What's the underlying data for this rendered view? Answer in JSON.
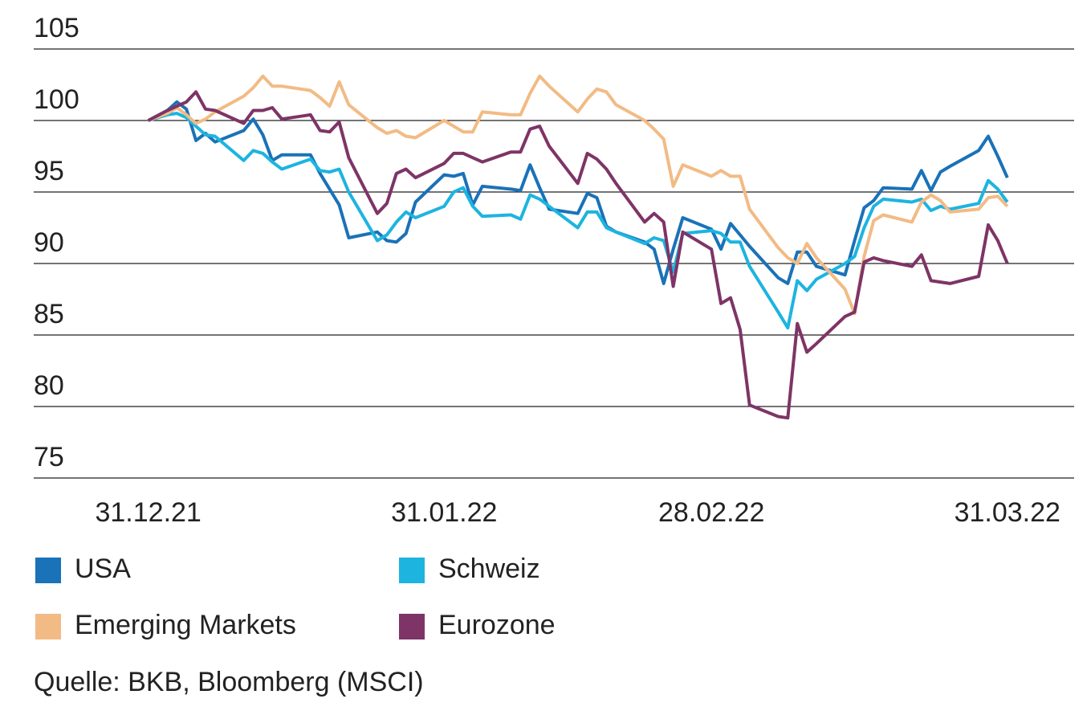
{
  "chart_data": {
    "type": "line",
    "source": "Quelle: BKB, Bloomberg (MSCI)",
    "x": [
      0,
      2,
      3,
      4,
      5,
      6,
      7,
      10,
      11,
      12,
      13,
      14,
      17,
      18,
      19,
      20,
      21,
      24,
      25,
      26,
      27,
      28,
      31,
      32,
      33,
      34,
      35,
      38,
      39,
      40,
      41,
      42,
      45,
      46,
      47,
      48,
      49,
      52,
      53,
      54,
      55,
      56,
      59,
      60,
      61,
      62,
      63,
      66,
      67,
      68,
      69,
      70,
      73,
      74,
      75,
      76,
      77,
      80,
      81,
      82,
      83,
      84,
      87,
      88,
      89,
      90
    ],
    "xlim": [
      -12,
      97
    ],
    "xticks": [
      {
        "value": 0,
        "label": "31.12.21"
      },
      {
        "value": 31,
        "label": "31.01.22"
      },
      {
        "value": 59,
        "label": "28.02.22"
      },
      {
        "value": 90,
        "label": "31.03.22"
      }
    ],
    "ylim": [
      75,
      105
    ],
    "yticks": [
      75,
      80,
      85,
      90,
      95,
      100,
      105
    ],
    "grid": true,
    "series": [
      {
        "name": "USA",
        "color": "#1a72b8",
        "values": [
          100,
          100.7,
          101.3,
          100.8,
          98.6,
          99.1,
          98.5,
          99.3,
          100.1,
          99,
          97.2,
          97.6,
          97.6,
          96.3,
          95.2,
          94.1,
          91.8,
          92.2,
          91.6,
          91.5,
          92.1,
          94.3,
          96.2,
          96.1,
          96.3,
          94.1,
          95.4,
          95.2,
          95.1,
          96.9,
          95.3,
          93.8,
          93.5,
          94.9,
          94.6,
          92.6,
          92.2,
          91.5,
          91,
          88.6,
          91,
          93.2,
          92.4,
          91,
          92.8,
          92,
          91.2,
          89,
          88.6,
          90.8,
          90.8,
          89.8,
          89.2,
          91.6,
          93.9,
          94.4,
          95.3,
          95.2,
          96.5,
          95.1,
          96.4,
          96.8,
          97.9,
          98.9,
          97.5,
          96
        ]
      },
      {
        "name": "Schweiz",
        "color": "#1db4e0",
        "values": [
          100,
          100.4,
          100.5,
          100.2,
          99.6,
          99,
          98.9,
          97.2,
          97.9,
          97.7,
          97.1,
          96.6,
          97.3,
          96.5,
          96.4,
          96.6,
          95,
          91.6,
          92,
          92.9,
          93.6,
          93.2,
          94,
          95,
          95.3,
          94,
          93.3,
          93.4,
          93.1,
          94.8,
          94.5,
          94,
          92.5,
          93.6,
          93.6,
          92.5,
          92.2,
          91.4,
          91.8,
          91.6,
          89.4,
          92.1,
          92.3,
          92.1,
          91.5,
          91.5,
          89.8,
          86.6,
          85.5,
          88.8,
          88.1,
          88.9,
          90,
          90.5,
          92.5,
          94,
          94.5,
          94.3,
          94.5,
          93.7,
          94,
          93.8,
          94.2,
          95.8,
          95.2,
          94.3
        ]
      },
      {
        "name": "Emerging Markets",
        "color": "#f2bb85",
        "values": [
          100,
          100.5,
          100.9,
          100.4,
          99.8,
          100.1,
          100.6,
          101.7,
          102.3,
          103.1,
          102.4,
          102.4,
          102.1,
          101.6,
          101,
          102.7,
          101.1,
          99.5,
          99.1,
          99.3,
          98.9,
          98.8,
          100,
          99.6,
          99.2,
          99.2,
          100.6,
          100.4,
          100.4,
          101.9,
          103.1,
          102.4,
          100.6,
          101.5,
          102.2,
          102,
          101.1,
          100,
          99.4,
          98.7,
          95.4,
          96.9,
          96.1,
          96.5,
          96.1,
          96.1,
          93.8,
          91.1,
          90.4,
          90,
          91.4,
          90.4,
          88.2,
          86.5,
          90.5,
          93,
          93.4,
          92.9,
          94.3,
          94.8,
          94.4,
          93.6,
          93.8,
          94.6,
          94.7,
          94
        ]
      },
      {
        "name": "Eurozone",
        "color": "#7e3466",
        "values": [
          100,
          100.7,
          101,
          101.3,
          102,
          100.8,
          100.7,
          99.8,
          100.7,
          100.7,
          100.9,
          100.1,
          100.4,
          99.3,
          99.2,
          99.9,
          97.4,
          93.5,
          94.2,
          96.3,
          96.6,
          96,
          97,
          97.7,
          97.7,
          97.4,
          97.1,
          97.8,
          97.8,
          99.4,
          99.6,
          98.2,
          95.6,
          97.7,
          97.3,
          96.6,
          95.6,
          92.9,
          93.5,
          92.9,
          88.4,
          92.2,
          91,
          87.2,
          87.6,
          85.4,
          80.1,
          79.3,
          79.2,
          85.8,
          83.8,
          84.4,
          86.3,
          86.6,
          90.1,
          90.4,
          90.2,
          89.8,
          90.6,
          88.8,
          88.7,
          88.6,
          89.1,
          92.7,
          91.6,
          90
        ]
      }
    ]
  }
}
